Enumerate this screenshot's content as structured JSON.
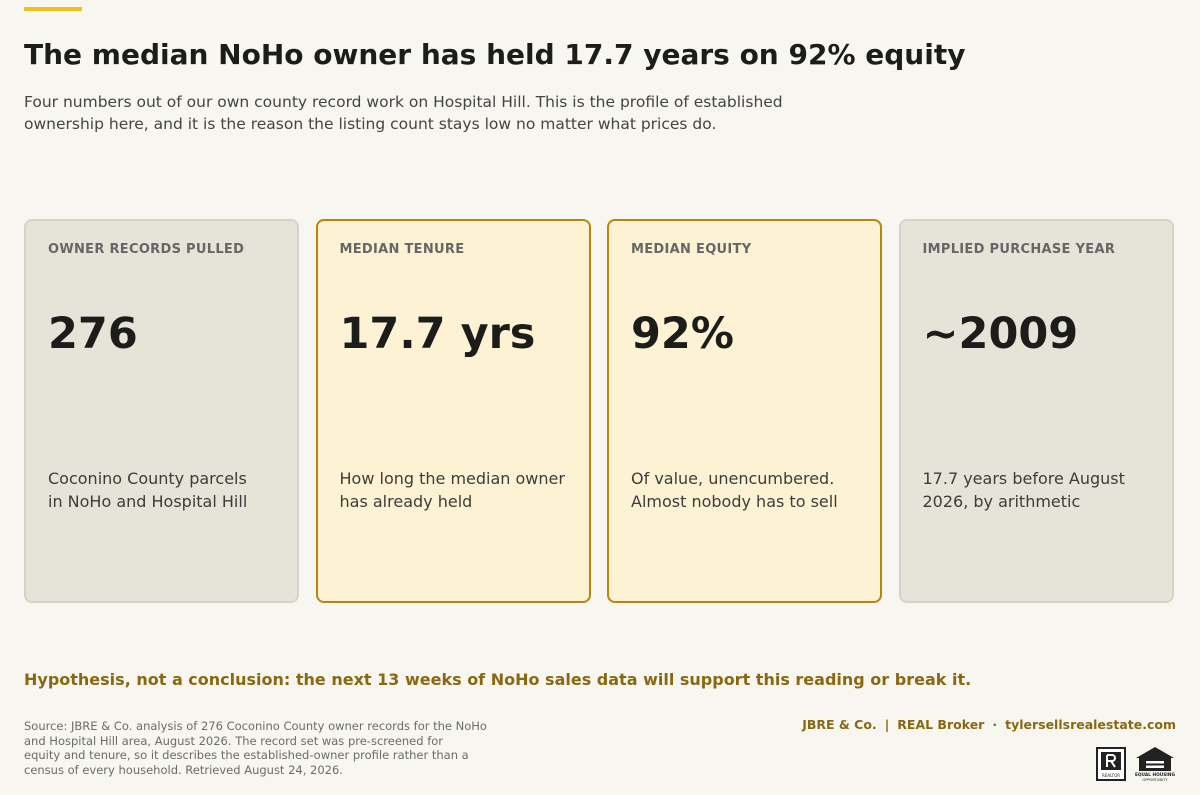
{
  "header": {
    "title": "The median NoHo owner has held 17.7 years on 92% equity",
    "subtitle_lines": [
      "Four numbers out of our own county record work on Hospital Hill. This is the profile of established",
      "ownership here, and it is the reason the listing count stays low no matter what prices do."
    ]
  },
  "cards": [
    {
      "label": "OWNER RECORDS PULLED",
      "value": "276",
      "description_lines": [
        "Coconino County parcels",
        "in NoHo and Hospital Hill"
      ],
      "highlight": false
    },
    {
      "label": "MEDIAN TENURE",
      "value": "17.7 yrs",
      "description_lines": [
        "How long the median owner",
        "has already held"
      ],
      "highlight": true
    },
    {
      "label": "MEDIAN EQUITY",
      "value": "92%",
      "description_lines": [
        "Of value, unencumbered.",
        "Almost nobody has to sell"
      ],
      "highlight": true
    },
    {
      "label": "IMPLIED PURCHASE YEAR",
      "value": "~2009",
      "description_lines": [
        "17.7 years before August",
        "2026, by arithmetic"
      ],
      "highlight": false
    }
  ],
  "hypothesis": "Hypothesis, not a conclusion: the next 13 weeks of NoHo sales data will support this reading or break it.",
  "source_lines": [
    "Source: JBRE & Co. analysis of 276 Coconino County owner records for the NoHo",
    "and Hospital Hill area, August 2026. The record set was pre-screened for",
    "equity and tenure, so it describes the established-owner profile rather than a",
    "census of every household. Retrieved August 24, 2026."
  ],
  "footer": {
    "brand_parts": [
      "JBRE & Co.",
      "|",
      "REAL Broker",
      "·",
      "tylersellsrealestate.com"
    ],
    "realtor_label": "REALTOR",
    "equal_housing_lines": [
      "EQUAL HOUSING",
      "OPPORTUNITY"
    ]
  }
}
